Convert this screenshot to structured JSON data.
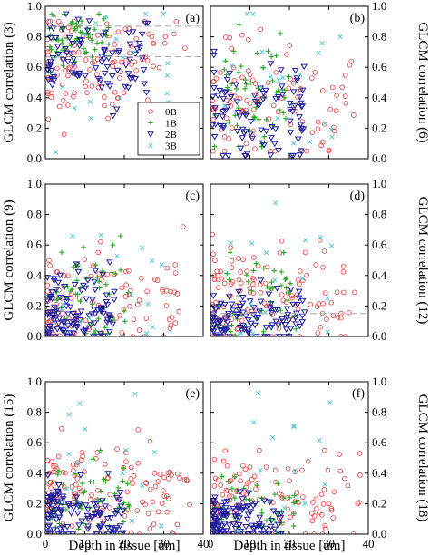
{
  "figure": {
    "xlabel": "Depth in tissue [um]",
    "colors": {
      "0B": "#e8393a",
      "1B": "#22aa22",
      "2B": "#1f1f9e",
      "3B": "#44c6cc",
      "ref": "#aaaaaa"
    }
  },
  "chart_data": [
    {
      "type": "scatter",
      "panel": "(a)",
      "ylabel": "GLCM correlation (3)",
      "ylabel_side": "left",
      "xlim": [
        0,
        40
      ],
      "ylim": [
        0,
        1.0
      ],
      "xticks": [
        0,
        10,
        20,
        30,
        40
      ],
      "yticks": [
        0.0,
        0.2,
        0.4,
        0.6,
        0.8,
        1.0
      ],
      "show_xticklabels": false,
      "show_legend": true,
      "legend": [
        "0B",
        "1B",
        "2B",
        "3B"
      ],
      "reference_lines": [
        0.87,
        0.67
      ],
      "clusters": [
        {
          "series": "0B",
          "n": 110,
          "x_range": [
            0.5,
            36
          ],
          "x_skew": 1.5,
          "y_center": 0.62,
          "y_spread": 0.18,
          "y_min": 0.15,
          "y_max": 0.9
        },
        {
          "series": "1B",
          "n": 60,
          "x_range": [
            1,
            17
          ],
          "x_skew": 1.0,
          "y_center": 0.8,
          "y_spread": 0.1,
          "y_min": 0.55,
          "y_max": 0.95
        },
        {
          "series": "2B",
          "n": 90,
          "x_range": [
            0.5,
            26
          ],
          "x_skew": 1.4,
          "y_center": 0.66,
          "y_spread": 0.16,
          "y_min": 0.2,
          "y_max": 0.95
        },
        {
          "series": "3B",
          "n": 20,
          "x_range": [
            2,
            35
          ],
          "x_skew": 1.0,
          "y_center": 0.55,
          "y_spread": 0.3,
          "y_min": 0.03,
          "y_max": 0.95
        }
      ]
    },
    {
      "type": "scatter",
      "panel": "(b)",
      "ylabel": "GLCM correlation (6)",
      "ylabel_side": "right",
      "xlim": [
        0,
        40
      ],
      "ylim": [
        0,
        1.0
      ],
      "xticks": [
        0,
        10,
        20,
        30,
        40
      ],
      "yticks": [
        0.0,
        0.2,
        0.4,
        0.6,
        0.8,
        1.0
      ],
      "show_xticklabels": false,
      "show_legend": false,
      "reference_lines": [],
      "clusters": [
        {
          "series": "0B",
          "n": 100,
          "x_range": [
            0.5,
            37
          ],
          "x_skew": 1.5,
          "y_center": 0.38,
          "y_spread": 0.22,
          "y_min": 0.05,
          "y_max": 0.88
        },
        {
          "series": "1B",
          "n": 55,
          "x_range": [
            1,
            20
          ],
          "x_skew": 1.0,
          "y_center": 0.42,
          "y_spread": 0.2,
          "y_min": 0.08,
          "y_max": 0.88
        },
        {
          "series": "2B",
          "n": 95,
          "x_range": [
            0.5,
            24
          ],
          "x_skew": 1.4,
          "y_center": 0.3,
          "y_spread": 0.18,
          "y_min": 0.02,
          "y_max": 0.78
        },
        {
          "series": "3B",
          "n": 18,
          "x_range": [
            3,
            33
          ],
          "x_skew": 1.0,
          "y_center": 0.5,
          "y_spread": 0.3,
          "y_min": 0.1,
          "y_max": 0.95
        }
      ]
    },
    {
      "type": "scatter",
      "panel": "(c)",
      "ylabel": "GLCM correlation (9)",
      "ylabel_side": "left",
      "xlim": [
        0,
        40
      ],
      "ylim": [
        0,
        1.0
      ],
      "xticks": [
        0,
        10,
        20,
        30,
        40
      ],
      "yticks": [
        0.0,
        0.2,
        0.4,
        0.6,
        0.8,
        1.0
      ],
      "show_xticklabels": false,
      "show_legend": false,
      "reference_lines": [],
      "clusters": [
        {
          "series": "0B",
          "n": 105,
          "x_range": [
            0.5,
            36
          ],
          "x_skew": 1.6,
          "y_center": 0.2,
          "y_spread": 0.18,
          "y_min": 0.0,
          "y_max": 0.72
        },
        {
          "series": "1B",
          "n": 50,
          "x_range": [
            2,
            22
          ],
          "x_skew": 1.0,
          "y_center": 0.3,
          "y_spread": 0.15,
          "y_min": 0.02,
          "y_max": 0.66
        },
        {
          "series": "2B",
          "n": 110,
          "x_range": [
            0.5,
            18
          ],
          "x_skew": 1.3,
          "y_center": 0.16,
          "y_spread": 0.14,
          "y_min": 0.0,
          "y_max": 0.58
        },
        {
          "series": "3B",
          "n": 15,
          "x_range": [
            2,
            30
          ],
          "x_skew": 1.0,
          "y_center": 0.45,
          "y_spread": 0.3,
          "y_min": 0.02,
          "y_max": 0.9
        }
      ]
    },
    {
      "type": "scatter",
      "panel": "(d)",
      "ylabel": "GLCM correlation (12)",
      "ylabel_side": "right",
      "xlim": [
        0,
        40
      ],
      "ylim": [
        0,
        1.0
      ],
      "xticks": [
        0,
        10,
        20,
        30,
        40
      ],
      "yticks": [
        0.0,
        0.2,
        0.4,
        0.6,
        0.8,
        1.0
      ],
      "show_xticklabels": false,
      "show_legend": false,
      "reference_lines": [
        0.15
      ],
      "clusters": [
        {
          "series": "0B",
          "n": 120,
          "x_range": [
            0.5,
            37
          ],
          "x_skew": 1.6,
          "y_center": 0.25,
          "y_spread": 0.2,
          "y_min": 0.0,
          "y_max": 0.88
        },
        {
          "series": "1B",
          "n": 45,
          "x_range": [
            2,
            22
          ],
          "x_skew": 1.0,
          "y_center": 0.22,
          "y_spread": 0.14,
          "y_min": 0.0,
          "y_max": 0.55
        },
        {
          "series": "2B",
          "n": 110,
          "x_range": [
            0.5,
            24
          ],
          "x_skew": 1.5,
          "y_center": 0.12,
          "y_spread": 0.1,
          "y_min": 0.0,
          "y_max": 0.5
        },
        {
          "series": "3B",
          "n": 15,
          "x_range": [
            5,
            32
          ],
          "x_skew": 1.0,
          "y_center": 0.4,
          "y_spread": 0.3,
          "y_min": 0.02,
          "y_max": 0.95
        }
      ]
    },
    {
      "type": "scatter",
      "panel": "(e)",
      "ylabel": "GLCM correlation (15)",
      "ylabel_side": "left",
      "xlim": [
        0,
        40
      ],
      "ylim": [
        0,
        1.0
      ],
      "xticks": [
        0,
        10,
        20,
        30,
        40
      ],
      "yticks": [
        0.0,
        0.2,
        0.4,
        0.6,
        0.8,
        1.0
      ],
      "show_xticklabels": true,
      "show_legend": false,
      "reference_lines": [],
      "clusters": [
        {
          "series": "0B",
          "n": 130,
          "x_range": [
            0.5,
            37
          ],
          "x_skew": 1.5,
          "y_center": 0.28,
          "y_spread": 0.18,
          "y_min": 0.0,
          "y_max": 0.85
        },
        {
          "series": "1B",
          "n": 55,
          "x_range": [
            1,
            22
          ],
          "x_skew": 1.0,
          "y_center": 0.2,
          "y_spread": 0.14,
          "y_min": 0.0,
          "y_max": 0.62
        },
        {
          "series": "2B",
          "n": 110,
          "x_range": [
            0.5,
            20
          ],
          "x_skew": 1.5,
          "y_center": 0.13,
          "y_spread": 0.1,
          "y_min": 0.0,
          "y_max": 0.45
        },
        {
          "series": "3B",
          "n": 14,
          "x_range": [
            5,
            30
          ],
          "x_skew": 1.0,
          "y_center": 0.45,
          "y_spread": 0.3,
          "y_min": 0.02,
          "y_max": 0.92
        }
      ]
    },
    {
      "type": "scatter",
      "panel": "(f)",
      "ylabel": "GLCM correlation (18)",
      "ylabel_side": "right",
      "xlim": [
        0,
        40
      ],
      "ylim": [
        0,
        1.0
      ],
      "xticks": [
        0,
        10,
        20,
        30,
        40
      ],
      "yticks": [
        0.0,
        0.2,
        0.4,
        0.6,
        0.8,
        1.0
      ],
      "show_xticklabels": true,
      "show_legend": false,
      "reference_lines": [],
      "clusters": [
        {
          "series": "0B",
          "n": 120,
          "x_range": [
            0.5,
            38
          ],
          "x_skew": 1.7,
          "y_center": 0.22,
          "y_spread": 0.15,
          "y_min": 0.0,
          "y_max": 0.55
        },
        {
          "series": "1B",
          "n": 45,
          "x_range": [
            1,
            22
          ],
          "x_skew": 1.0,
          "y_center": 0.15,
          "y_spread": 0.12,
          "y_min": 0.0,
          "y_max": 0.5
        },
        {
          "series": "2B",
          "n": 110,
          "x_range": [
            0.5,
            18
          ],
          "x_skew": 1.5,
          "y_center": 0.1,
          "y_spread": 0.08,
          "y_min": 0.0,
          "y_max": 0.4
        },
        {
          "series": "3B",
          "n": 14,
          "x_range": [
            5,
            32
          ],
          "x_skew": 1.0,
          "y_center": 0.45,
          "y_spread": 0.3,
          "y_min": 0.02,
          "y_max": 0.95
        }
      ]
    }
  ]
}
